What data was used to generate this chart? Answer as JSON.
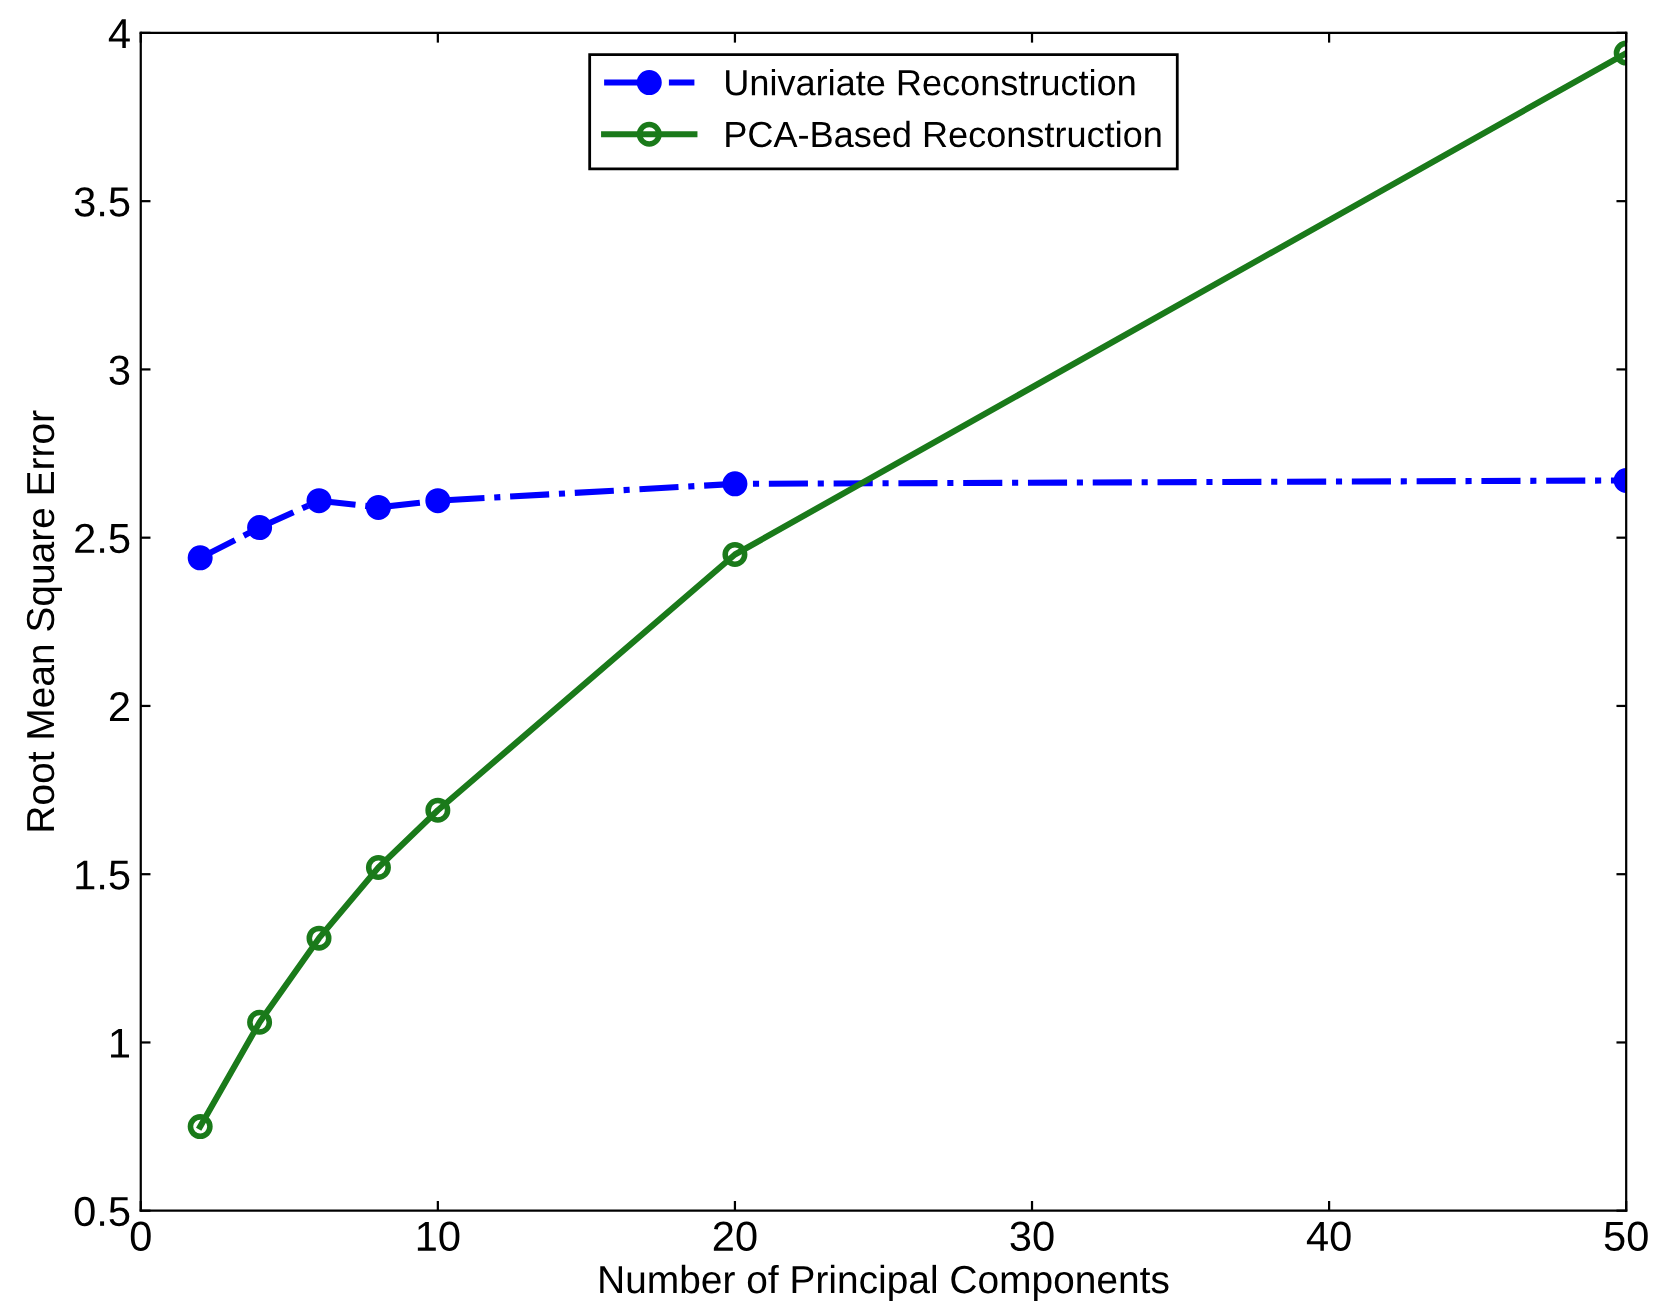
{
  "chart_data": {
    "type": "line",
    "xlabel": "Number of Principal Components",
    "ylabel": "Root Mean Square Error",
    "x": [
      2,
      4,
      6,
      8,
      10,
      20,
      50
    ],
    "series": [
      {
        "name": "Univariate Reconstruction",
        "color": "#0000ff",
        "values": [
          2.44,
          2.53,
          2.61,
          2.59,
          2.61,
          2.66,
          2.67
        ],
        "marker": "circle",
        "line_style": "dashdot"
      },
      {
        "name": "PCA-Based Reconstruction",
        "color": "#1a7a1a",
        "values": [
          0.75,
          1.06,
          1.31,
          1.52,
          1.69,
          2.45,
          3.94
        ],
        "marker": "circle",
        "line_style": "solid"
      }
    ],
    "xlim": [
      0,
      50
    ],
    "xticks": [
      0,
      10,
      20,
      30,
      40,
      50
    ],
    "ylim": [
      0.5,
      4
    ],
    "yticks": [
      0.5,
      1,
      1.5,
      2,
      2.5,
      3,
      3.5,
      4
    ],
    "grid": false,
    "legend": "top"
  }
}
